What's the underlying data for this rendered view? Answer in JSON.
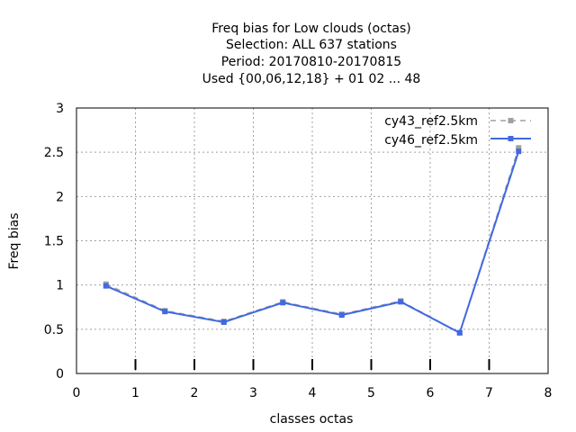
{
  "chart_data": {
    "type": "line",
    "title_lines": [
      "Freq bias  for Low clouds (octas)",
      "Selection: ALL    637 stations",
      "Period: 20170810-20170815",
      "Used {00,06,12,18} + 01 02 ... 48"
    ],
    "xlabel": "classes octas",
    "ylabel": "Freq bias",
    "xlim": [
      0,
      8
    ],
    "ylim": [
      0,
      3
    ],
    "xticks": [
      0,
      1,
      2,
      3,
      4,
      5,
      6,
      7,
      8
    ],
    "yticks": [
      0,
      0.5,
      1,
      1.5,
      2,
      2.5,
      3
    ],
    "xtick_labels": [
      "0",
      "1",
      "2",
      "3",
      "4",
      "5",
      "6",
      "7",
      "8"
    ],
    "ytick_labels": [
      "0",
      "0.5",
      "1",
      "1.5",
      "2",
      "2.5",
      "3"
    ],
    "grid": true,
    "legend_position": "top-right",
    "series": [
      {
        "name": "cy43_ref2.5km",
        "color": "#a0a0a0",
        "style": "dashed",
        "x": [
          0.5,
          1.5,
          2.5,
          3.5,
          4.5,
          5.5,
          6.5,
          7.5
        ],
        "y": [
          1.01,
          0.71,
          0.59,
          0.81,
          0.67,
          0.82,
          0.46,
          2.55
        ]
      },
      {
        "name": "cy46_ref2.5km",
        "color": "#4169e1",
        "style": "solid",
        "x": [
          0.5,
          1.5,
          2.5,
          3.5,
          4.5,
          5.5,
          6.5,
          7.5
        ],
        "y": [
          0.99,
          0.7,
          0.58,
          0.8,
          0.66,
          0.81,
          0.46,
          2.51
        ]
      }
    ]
  }
}
